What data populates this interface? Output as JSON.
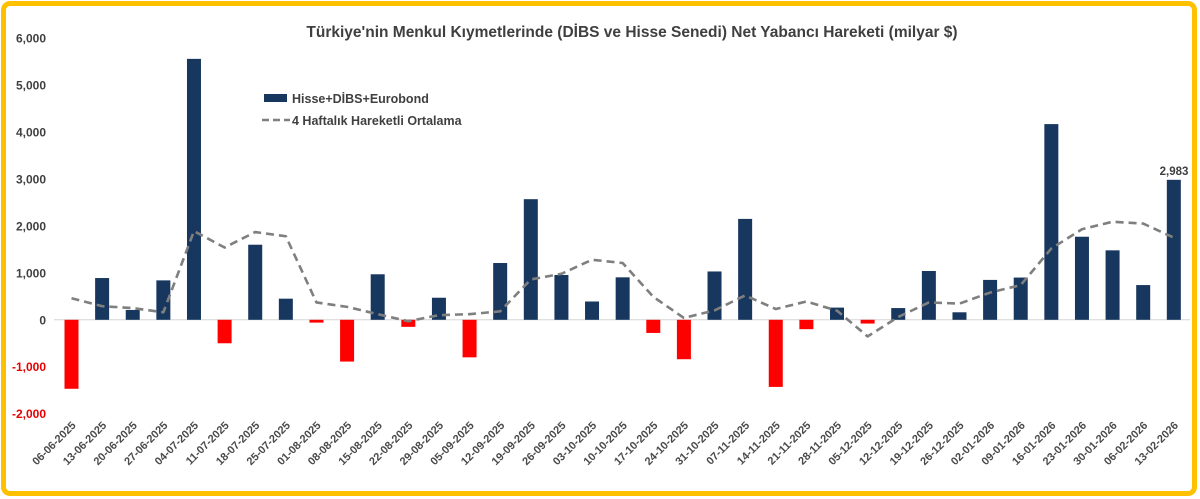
{
  "title": "Türkiye'nin Menkul Kıymetlerinde (DİBS ve Hisse Senedi) Net Yabancı Hareketi (milyar $)",
  "legend": {
    "bars_label": "Hisse+DİBS+Eurobond",
    "ma_label": "4 Haftalık Hareketli Ortalama"
  },
  "annotation": {
    "last_bar_label": "2,983"
  },
  "colors": {
    "positive_bar": "#17375E",
    "negative_bar": "#FF0000",
    "ma_line": "#7F7F7F",
    "border": "#FFC000",
    "axis_text": "#404040",
    "negative_axis_text": "#E60000",
    "zero_line": "#D6D6D6"
  },
  "y_axis": {
    "ticks": [
      {
        "value": 6000,
        "label": "6,000"
      },
      {
        "value": 5000,
        "label": "5,000"
      },
      {
        "value": 4000,
        "label": "4,000"
      },
      {
        "value": 3000,
        "label": "3,000"
      },
      {
        "value": 2000,
        "label": "2,000"
      },
      {
        "value": 1000,
        "label": "1,000"
      },
      {
        "value": 0,
        "label": "0"
      },
      {
        "value": -1000,
        "label": "-1,000"
      },
      {
        "value": -2000,
        "label": "-2,000"
      }
    ]
  },
  "chart_data": {
    "type": "bar",
    "title": "Türkiye'nin Menkul Kıymetlerinde (DİBS ve Hisse Senedi) Net Yabancı Hareketi (milyar $)",
    "xlabel": "",
    "ylabel": "",
    "ylim": [
      -2000,
      6000
    ],
    "grid": false,
    "legend_position": "upper-left-inside",
    "categories": [
      "06-06-2025",
      "13-06-2025",
      "20-06-2025",
      "27-06-2025",
      "04-07-2025",
      "11-07-2025",
      "18-07-2025",
      "25-07-2025",
      "01-08-2025",
      "08-08-2025",
      "15-08-2025",
      "22-08-2025",
      "29-08-2025",
      "05-09-2025",
      "12-09-2025",
      "19-09-2025",
      "26-09-2025",
      "03-10-2025",
      "10-10-2025",
      "17-10-2025",
      "24-10-2025",
      "31-10-2025",
      "07-11-2025",
      "14-11-2025",
      "21-11-2025",
      "28-11-2025",
      "05-12-2025",
      "12-12-2025",
      "19-12-2025",
      "26-12-2025",
      "02-01-2026",
      "09-01-2026",
      "16-01-2026",
      "23-01-2026",
      "30-01-2026",
      "06-02-2026",
      "13-02-2026"
    ],
    "series": [
      {
        "name": "Hisse+DİBS+Eurobond",
        "type": "bar",
        "values": [
          -1470,
          890,
          210,
          840,
          5560,
          -500,
          1600,
          450,
          -60,
          -890,
          970,
          -150,
          470,
          -800,
          1210,
          2570,
          955,
          390,
          905,
          -280,
          -840,
          1030,
          2150,
          -1430,
          -200,
          260,
          -80,
          250,
          1040,
          160,
          850,
          900,
          4170,
          1770,
          1480,
          740,
          2983
        ]
      },
      {
        "name": "4 Haftalık Hareketli Ortalama",
        "type": "line",
        "values": [
          460,
          290,
          250,
          160,
          1890,
          1540,
          1870,
          1780,
          370,
          275,
          120,
          -30,
          100,
          120,
          180,
          860,
          980,
          1280,
          1210,
          490,
          40,
          200,
          520,
          230,
          390,
          195,
          -355,
          60,
          370,
          345,
          580,
          740,
          1520,
          1930,
          2090,
          2050,
          1750
        ]
      }
    ],
    "data_labels": [
      {
        "category": "13-02-2026",
        "label": "2,983"
      }
    ]
  }
}
